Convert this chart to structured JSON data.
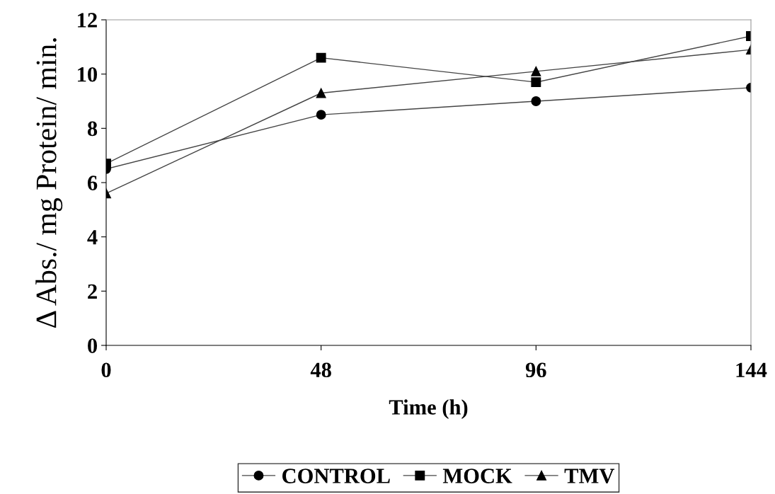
{
  "chart_data": {
    "type": "line",
    "xlabel": "Time (h)",
    "ylabel": "Δ Abs./ mg Protein/ min.",
    "x": [
      0,
      48,
      96,
      144
    ],
    "series": [
      {
        "name": "CONTROL",
        "color": "#000000",
        "marker": "circle",
        "values": [
          6.5,
          8.5,
          9.0,
          9.5
        ]
      },
      {
        "name": "MOCK",
        "color": "#000000",
        "marker": "square",
        "values": [
          6.7,
          10.6,
          9.7,
          11.4
        ]
      },
      {
        "name": "TMV",
        "color": "#000000",
        "marker": "triangle",
        "values": [
          5.6,
          9.3,
          10.1,
          10.9
        ]
      }
    ],
    "xlim": [
      0,
      144
    ],
    "xticks": [
      0,
      48,
      96,
      144
    ],
    "ylim": [
      0,
      12
    ],
    "yticks": [
      0,
      2,
      4,
      6,
      8,
      10,
      12
    ],
    "grid": false,
    "legend": "bottom",
    "line_style": "solid"
  }
}
